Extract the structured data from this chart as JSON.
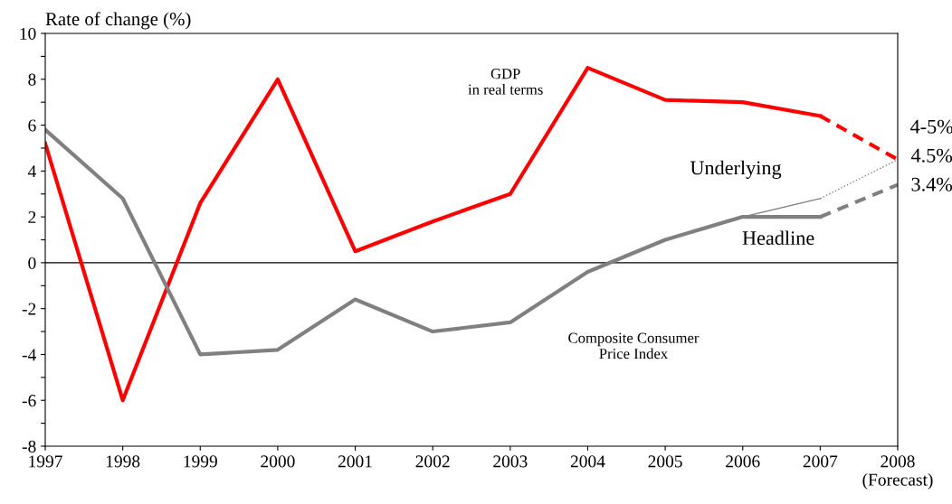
{
  "chart_data": {
    "type": "line",
    "ylabel": "Rate of change (%)",
    "xlim": [
      1997,
      2008
    ],
    "ylim": [
      -8,
      10
    ],
    "xticks": [
      1997,
      1998,
      1999,
      2000,
      2001,
      2002,
      2003,
      2004,
      2005,
      2006,
      2007,
      {
        "value": 2008,
        "label": "2008\n(Forecast)"
      }
    ],
    "yticks": [
      -8,
      {
        "value": -7,
        "label": null
      },
      -6,
      {
        "value": -5,
        "label": null
      },
      -4,
      {
        "value": -3,
        "label": null
      },
      -2,
      {
        "value": -1,
        "label": null
      },
      0,
      {
        "value": 1,
        "label": null
      },
      2,
      {
        "value": 3,
        "label": null
      },
      4,
      {
        "value": 5,
        "label": null
      },
      6,
      {
        "value": 7,
        "label": null
      },
      8,
      {
        "value": 9,
        "label": null
      },
      10
    ],
    "grid": false,
    "legend": false,
    "marker": "none",
    "ref_lines": [
      {
        "axis": "y",
        "value": 0,
        "color": "#000000",
        "line_style": "solid"
      }
    ],
    "series": [
      {
        "color": "#ff0000",
        "line_style": "solid",
        "x": [
          1997,
          1998,
          1999,
          2000,
          2001,
          2002,
          2003,
          2004,
          2005,
          2006,
          2007
        ],
        "values": [
          5.2,
          -6.0,
          2.6,
          8.0,
          0.5,
          1.8,
          3.0,
          8.5,
          7.1,
          7.0,
          6.4
        ]
      },
      {
        "color": "#ff0000",
        "line_style": "dashed",
        "x": [
          2007,
          2008
        ],
        "values": [
          6.4,
          4.5
        ]
      },
      {
        "color": "#808080",
        "line_style": "solid",
        "x": [
          1997,
          1998,
          1999,
          2000,
          2001,
          2002,
          2003,
          2004,
          2005,
          2006,
          2007
        ],
        "values": [
          5.8,
          2.8,
          -4.0,
          -3.8,
          -1.6,
          -3.0,
          -2.6,
          -0.4,
          1.0,
          2.0,
          2.0
        ]
      },
      {
        "color": "#808080",
        "line_style": "dashed",
        "x": [
          2007,
          2008
        ],
        "values": [
          2.0,
          3.4
        ]
      },
      {
        "color": "#808080",
        "line_style": "solid",
        "x": [
          2006,
          2007
        ],
        "values": [
          2.0,
          2.8
        ]
      },
      {
        "color": "#808080",
        "line_style": "dotted",
        "x": [
          2007,
          2008
        ],
        "values": [
          2.8,
          4.5
        ]
      }
    ],
    "annotations": [
      "GDP\nin real terms",
      "Underlying",
      "Headline",
      "Composite Consumer\nPrice Index",
      "4-5%",
      "4.5%",
      "3.4%"
    ]
  }
}
